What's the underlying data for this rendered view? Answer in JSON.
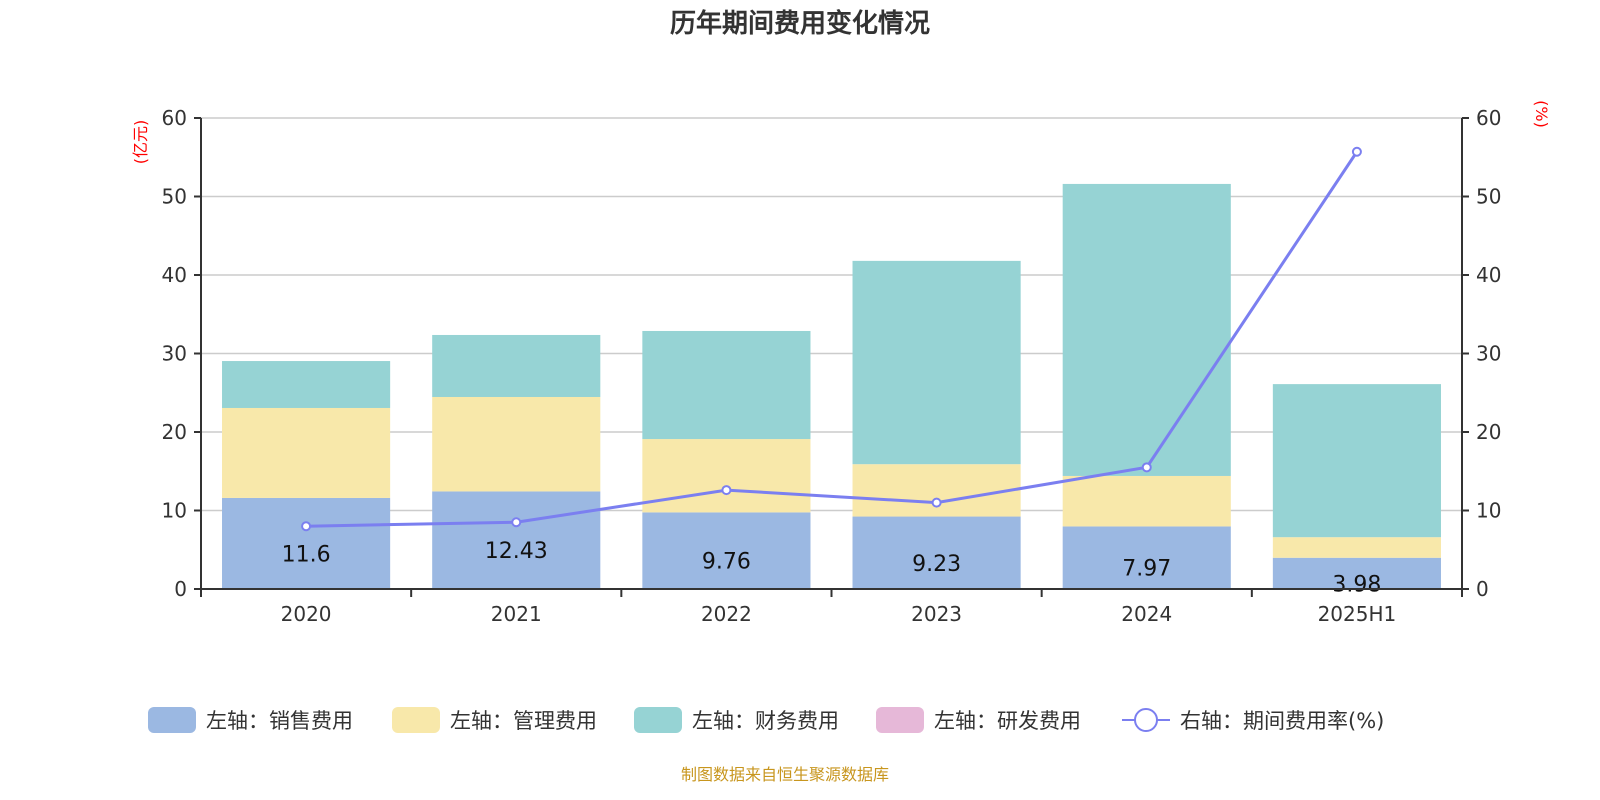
{
  "chart_data": {
    "type": "bar",
    "stacked": true,
    "title": "历年期间费用变化情况",
    "categories": [
      "2020",
      "2021",
      "2022",
      "2023",
      "2024",
      "2025H1"
    ],
    "left_axis": {
      "label": "(亿元)",
      "ylim": [
        0,
        60
      ],
      "ticks": [
        0,
        10,
        20,
        30,
        40,
        50,
        60
      ]
    },
    "right_axis": {
      "label": "(%)",
      "ylim": [
        0,
        60
      ],
      "ticks": [
        0,
        10,
        20,
        30,
        40,
        50,
        60
      ]
    },
    "grid": true,
    "legend_position": "bottom",
    "series": [
      {
        "name": "左轴：销售费用",
        "axis": "left",
        "type": "bar",
        "color": "#9bb8e2",
        "values": [
          11.6,
          12.43,
          9.76,
          9.23,
          7.97,
          3.98
        ],
        "show_labels": true
      },
      {
        "name": "左轴：管理费用",
        "axis": "left",
        "type": "bar",
        "color": "#f8e8aa",
        "values": [
          11.46,
          12.03,
          9.34,
          6.67,
          6.43,
          2.62
        ]
      },
      {
        "name": "左轴：财务费用",
        "axis": "left",
        "type": "bar",
        "color": "#96d3d4",
        "values": [
          5.98,
          7.9,
          13.77,
          25.9,
          37.2,
          19.5
        ]
      },
      {
        "name": "左轴：研发费用",
        "axis": "left",
        "type": "bar",
        "color": "#e6b8d8",
        "values": [
          0,
          0,
          0,
          0,
          0,
          0
        ]
      },
      {
        "name": "右轴：期间费用率(%)",
        "axis": "right",
        "type": "line",
        "color": "#7b7ff0",
        "values": [
          8.0,
          8.5,
          12.6,
          11.0,
          15.5,
          55.7
        ]
      }
    ],
    "source": "制图数据来自恒生聚源数据库"
  }
}
